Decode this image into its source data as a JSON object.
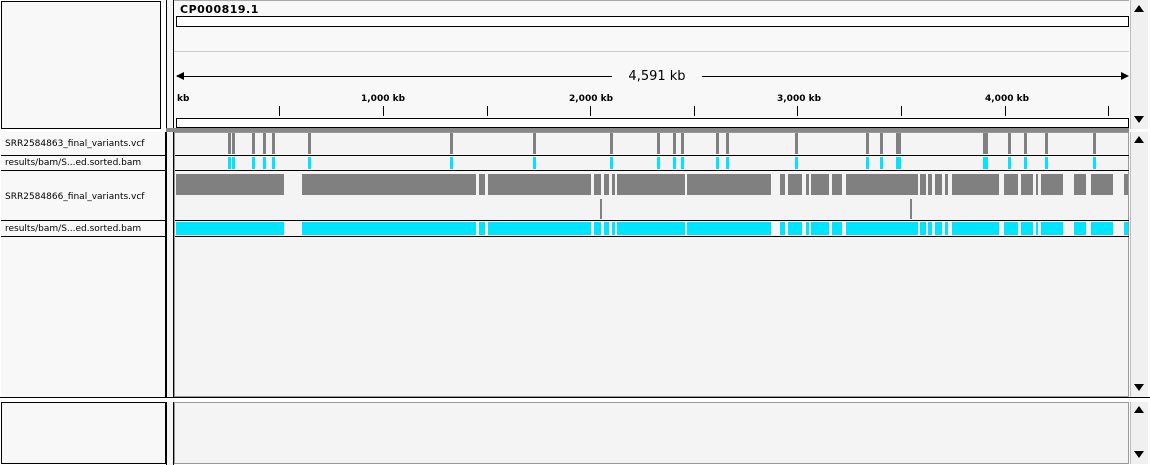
{
  "chromosome": {
    "name": "CP000819.1"
  },
  "ruler": {
    "span_label": "4,591 kb",
    "start_label": "kb",
    "tick_labels": [
      "1,000 kb",
      "2,000 kb",
      "3,000 kb",
      "4,000 kb"
    ]
  },
  "tracks": [
    {
      "name": "SRR2584863_final_variants.vcf"
    },
    {
      "name": "results/bam/S...ed.sorted.bam"
    },
    {
      "name": "SRR2584866_final_variants.vcf"
    },
    {
      "name": "results/bam/S...ed.sorted.bam"
    }
  ],
  "colors": {
    "vcf": "#808080",
    "bam_coverage": "#00e5ff",
    "panel_bg": "#f4f4f4"
  },
  "icons": [
    "scroll-up-icon",
    "scroll-down-icon"
  ]
}
